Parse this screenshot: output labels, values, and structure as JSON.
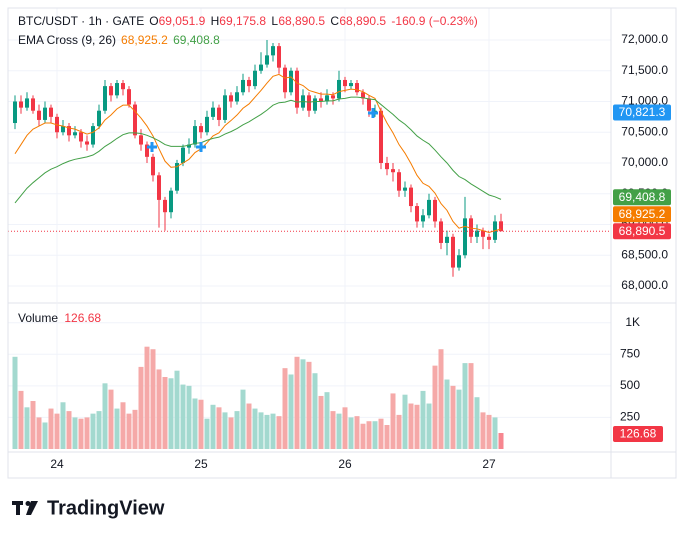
{
  "chart_data": [
    {
      "type": "candlestick",
      "title": "BTC/USDT · 1h · GATE",
      "ohlc_legend": [
        {
          "key": "O",
          "value": "69,051.9"
        },
        {
          "key": "H",
          "value": "69,175.8"
        },
        {
          "key": "L",
          "value": "68,890.5"
        },
        {
          "key": "C",
          "value": "68,890.5"
        }
      ],
      "change_label": "-160.9 (−0.23%)",
      "up_color": "#089981",
      "down_color": "#f23645",
      "open": [
        70650,
        71000,
        70900,
        71050,
        70850,
        70700,
        70900,
        70750,
        70500,
        70600,
        70450,
        70500,
        70350,
        70300,
        70600,
        70850,
        71250,
        71100,
        71300,
        71200,
        70950,
        70450,
        70300,
        70100,
        69800,
        69400,
        69200,
        69550,
        70000,
        70250,
        70300,
        70600,
        70500,
        70750,
        70900,
        70700,
        71100,
        71000,
        71150,
        71350,
        71250,
        71500,
        71600,
        71750,
        71900,
        71550,
        71150,
        71500,
        70900,
        71100,
        70850,
        71050,
        71000,
        71100,
        71050,
        71350,
        71250,
        71300,
        71150,
        71050,
        70850,
        70850,
        70000,
        69900,
        69850,
        69550,
        69600,
        69300,
        69050,
        69150,
        69400,
        69050,
        68700,
        68800,
        68300,
        68500,
        69100,
        68800,
        68900,
        68800,
        68750,
        69051.9
      ],
      "high": [
        71100,
        71100,
        71150,
        71100,
        70950,
        71000,
        70950,
        70800,
        70700,
        70650,
        70600,
        70550,
        70450,
        70650,
        70950,
        71350,
        71300,
        71350,
        71350,
        71250,
        71000,
        70550,
        70350,
        70150,
        69850,
        69450,
        69600,
        70050,
        70300,
        70400,
        70700,
        70650,
        70850,
        71000,
        70950,
        71200,
        71150,
        71250,
        71450,
        71400,
        71600,
        71800,
        72000,
        71950,
        71950,
        71600,
        71550,
        71550,
        71200,
        71150,
        71100,
        71150,
        71200,
        71150,
        71500,
        71400,
        71350,
        71350,
        71200,
        71100,
        70950,
        70900,
        70100,
        70000,
        69900,
        69700,
        69650,
        69350,
        69250,
        69500,
        69450,
        69100,
        68900,
        68850,
        68600,
        69450,
        69150,
        69000,
        68950,
        68850,
        69150,
        69175.8
      ],
      "low": [
        70550,
        70800,
        70850,
        70800,
        70600,
        70650,
        70650,
        70400,
        70450,
        70350,
        70400,
        70250,
        70200,
        70250,
        70550,
        70800,
        71000,
        71050,
        71100,
        70900,
        70400,
        70200,
        70000,
        69700,
        68950,
        68900,
        69100,
        69500,
        69950,
        70150,
        70250,
        70400,
        70450,
        70700,
        70600,
        70650,
        70900,
        70950,
        71100,
        71150,
        71200,
        71450,
        71550,
        71650,
        71450,
        71050,
        71100,
        70800,
        70850,
        70750,
        70800,
        70900,
        70950,
        70950,
        71000,
        71150,
        71200,
        71100,
        70950,
        70750,
        70750,
        69900,
        69800,
        69700,
        69450,
        69450,
        69200,
        68950,
        68950,
        69100,
        68950,
        68600,
        68500,
        68150,
        68250,
        68450,
        68700,
        68700,
        68600,
        68600,
        68700,
        68890.5
      ],
      "close": [
        71000,
        70900,
        71050,
        70850,
        70700,
        70900,
        70750,
        70500,
        70600,
        70450,
        70500,
        70350,
        70300,
        70600,
        70850,
        71250,
        71100,
        71300,
        71200,
        70950,
        70450,
        70300,
        70100,
        69800,
        69400,
        69200,
        69550,
        70000,
        70250,
        70300,
        70600,
        70500,
        70750,
        70900,
        70700,
        71100,
        71000,
        71150,
        71350,
        71250,
        71500,
        71600,
        71750,
        71900,
        71550,
        71150,
        71500,
        70900,
        71100,
        70850,
        71050,
        71000,
        71100,
        71050,
        71350,
        71250,
        71300,
        71150,
        71050,
        70850,
        70850,
        70000,
        69900,
        69850,
        69550,
        69600,
        69300,
        69050,
        69150,
        69400,
        69050,
        68700,
        68800,
        68300,
        68500,
        69100,
        68800,
        68900,
        68800,
        68750,
        69050,
        68890.5
      ],
      "indicator": {
        "title": "EMA Cross (9, 26)",
        "series": [
          {
            "color": "#f57c00",
            "last_label": "68,925.2",
            "values": [
              70150,
              70300,
              70450,
              70550,
              70600,
              70650,
              70650,
              70620,
              70600,
              70570,
              70550,
              70510,
              70470,
              70500,
              70570,
              70700,
              70780,
              70880,
              70940,
              70940,
              70840,
              70730,
              70600,
              70440,
              70230,
              70030,
              69930,
              69940,
              70000,
              70060,
              70170,
              70230,
              70330,
              70440,
              70490,
              70610,
              70690,
              70780,
              70890,
              70960,
              71070,
              71180,
              71300,
              71410,
              71440,
              71380,
              71400,
              71300,
              71260,
              71180,
              71150,
              71120,
              71120,
              71110,
              71160,
              71180,
              71200,
              71190,
              71160,
              71100,
              71050,
              70840,
              70650,
              70490,
              70300,
              70160,
              69990,
              69800,
              69670,
              69620,
              69510,
              69340,
              69230,
              69050,
              68940,
              68970,
              68940,
              68930,
              68900,
              68870,
              68900,
              68925.2
            ]
          },
          {
            "color": "#43a047",
            "last_label": "69,408.8",
            "values": [
              69350,
              69470,
              69590,
              69680,
              69760,
              69840,
              69900,
              69940,
              69990,
              70030,
              70060,
              70080,
              70100,
              70130,
              70190,
              70270,
              70330,
              70400,
              70460,
              70490,
              70490,
              70480,
              70450,
              70410,
              70360,
              70300,
              70270,
              70270,
              70270,
              70290,
              70320,
              70330,
              70370,
              70400,
              70420,
              70470,
              70510,
              70560,
              70620,
              70670,
              70730,
              70790,
              70860,
              70940,
              70980,
              70990,
              71020,
              70990,
              71000,
              70990,
              71000,
              71000,
              71010,
              71010,
              71040,
              71050,
              71070,
              71070,
              71060,
              71040,
              71030,
              70950,
              70870,
              70790,
              70700,
              70630,
              70540,
              70440,
              70370,
              70310,
              70210,
              70100,
              70000,
              69880,
              69780,
              69730,
              69660,
              69600,
              69540,
              69480,
              69450,
              69408.8
            ]
          }
        ]
      },
      "price_labels": [
        {
          "value": 70821.3,
          "label": "70,821.3",
          "color": "#2196f3"
        }
      ],
      "last_price": {
        "value": 68890.5,
        "label": "68,890.5",
        "color": "#f23645"
      },
      "ylim": [
        67740,
        72520
      ],
      "yticks": [
        {
          "value": 72000,
          "label": "72,000.0"
        },
        {
          "value": 71500,
          "label": "71,500.0"
        },
        {
          "value": 71000,
          "label": "71,000.0"
        },
        {
          "value": 70500,
          "label": "70,500.0"
        },
        {
          "value": 70000,
          "label": "70,000.0"
        },
        {
          "value": 69500,
          "label": "69,500.0"
        },
        {
          "value": 69000,
          "label": "69,000.0"
        },
        {
          "value": 68500,
          "label": "68,500.0"
        },
        {
          "value": 68000,
          "label": "68,000.0"
        }
      ],
      "xticks": [
        {
          "value": 7,
          "label": "24"
        },
        {
          "value": 31,
          "label": "25"
        },
        {
          "value": 55,
          "label": "26"
        },
        {
          "value": 79,
          "label": "27"
        }
      ],
      "grid": true
    },
    {
      "type": "bar",
      "title": "Volume",
      "up_color": "#a3d9cf",
      "down_color": "#f5a9a8",
      "last_color": "#f23645",
      "values": [
        730,
        460,
        330,
        380,
        250,
        210,
        320,
        280,
        370,
        300,
        250,
        240,
        250,
        280,
        300,
        520,
        470,
        320,
        370,
        280,
        310,
        650,
        810,
        790,
        630,
        570,
        560,
        620,
        510,
        500,
        400,
        390,
        240,
        350,
        330,
        290,
        250,
        300,
        470,
        360,
        320,
        290,
        270,
        280,
        260,
        640,
        590,
        730,
        710,
        690,
        600,
        420,
        450,
        300,
        280,
        330,
        250,
        260,
        200,
        220,
        220,
        240,
        190,
        440,
        270,
        430,
        360,
        350,
        460,
        360,
        660,
        790,
        550,
        500,
        470,
        680,
        680,
        410,
        290,
        270,
        250,
        126.68
      ],
      "ylim": [
        0,
        1148
      ],
      "yticks": [
        {
          "value": 1000,
          "label": "1K"
        },
        750,
        500,
        250
      ]
    }
  ],
  "footer": {
    "brand": "TradingView"
  }
}
